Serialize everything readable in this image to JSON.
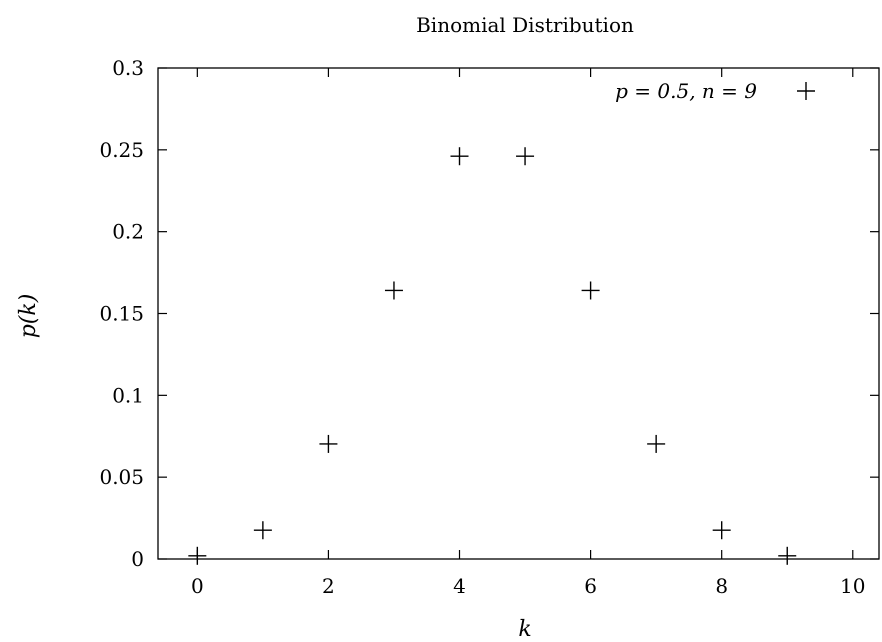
{
  "chart_data": {
    "type": "scatter",
    "title": "Binomial Distribution",
    "xlabel": "k",
    "ylabel": "p(k)",
    "xlim": [
      -0.6,
      10.4
    ],
    "ylim": [
      0,
      0.3
    ],
    "xticks": [
      0,
      2,
      4,
      6,
      8,
      10
    ],
    "xtick_labels": [
      "0",
      "2",
      "4",
      "6",
      "8",
      "10"
    ],
    "yticks": [
      0,
      0.05,
      0.1,
      0.15,
      0.2,
      0.25,
      0.3
    ],
    "ytick_labels": [
      "0",
      "0.05",
      "0.1",
      "0.15",
      "0.2",
      "0.25",
      "0.3"
    ],
    "grid": false,
    "legend_position": "top-right",
    "series": [
      {
        "name": "p = 0.5, n = 9",
        "marker": "plus",
        "color": "#000000",
        "x": [
          0,
          1,
          2,
          3,
          4,
          5,
          6,
          7,
          8,
          9
        ],
        "y": [
          0.001953,
          0.017578,
          0.070313,
          0.164063,
          0.246094,
          0.246094,
          0.164063,
          0.070313,
          0.017578,
          0.001953
        ]
      }
    ]
  }
}
